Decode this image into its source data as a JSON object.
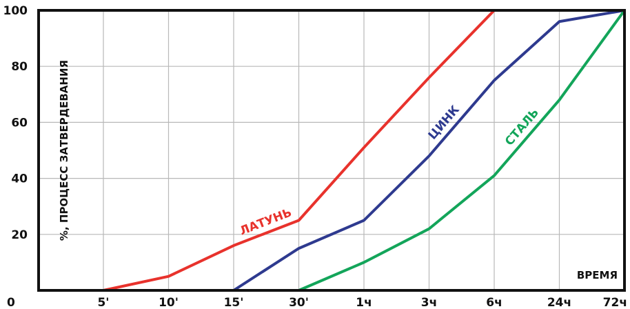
{
  "chart_data": {
    "type": "line",
    "title": "",
    "xlabel": "ВРЕМЯ",
    "ylabel": "%, ПРОЦЕСС ЗАТВЕРДЕВАНИЯ",
    "origin_label": "0",
    "categories": [
      "5'",
      "10'",
      "15'",
      "30'",
      "1ч",
      "3ч",
      "6ч",
      "24ч",
      "72ч"
    ],
    "yticks": [
      20,
      40,
      60,
      80,
      100
    ],
    "ylim": [
      0,
      100
    ],
    "grid": true,
    "legend": "none",
    "series": [
      {
        "name": "ЛАТУНЬ",
        "color": "#e8322c",
        "points": [
          [
            "5'",
            0
          ],
          [
            "10'",
            5
          ],
          [
            "15'",
            16
          ],
          [
            "30'",
            25
          ],
          [
            "1ч",
            51
          ],
          [
            "3ч",
            76
          ],
          [
            "6ч",
            100
          ]
        ]
      },
      {
        "name": "ЦИНК",
        "color": "#2e3a8f",
        "points": [
          [
            "15'",
            0
          ],
          [
            "30'",
            15
          ],
          [
            "1ч",
            25
          ],
          [
            "3ч",
            48
          ],
          [
            "6ч",
            75
          ],
          [
            "24ч",
            96
          ],
          [
            "72ч",
            100
          ]
        ]
      },
      {
        "name": "СТАЛЬ",
        "color": "#13a55a",
        "points": [
          [
            "30'",
            0
          ],
          [
            "1ч",
            10
          ],
          [
            "3ч",
            22
          ],
          [
            "6ч",
            41
          ],
          [
            "24ч",
            68
          ],
          [
            "72ч",
            100
          ]
        ]
      }
    ]
  }
}
